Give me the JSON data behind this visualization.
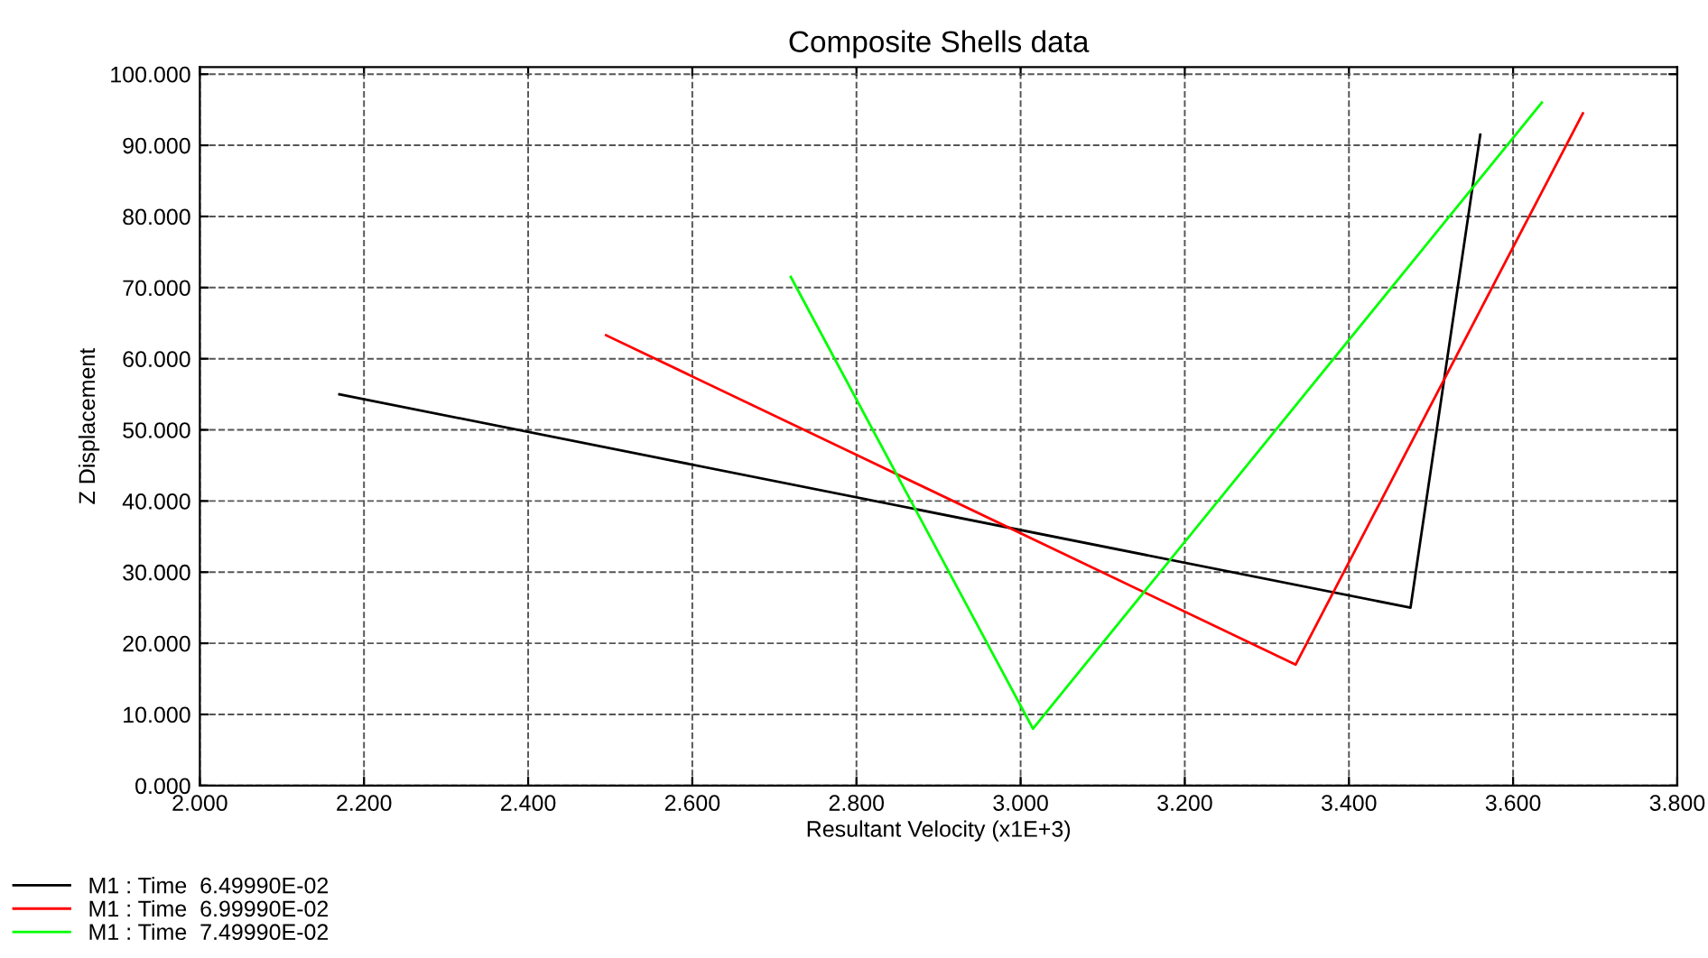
{
  "chart_data": {
    "type": "line",
    "title": "Composite Shells data",
    "xlabel": "Resultant Velocity (x1E+3)",
    "ylabel": "Z Displacement",
    "xlim": [
      2.0,
      3.8
    ],
    "ylim": [
      0,
      101
    ],
    "xticks": [
      {
        "value": 2.0,
        "label": "2.000"
      },
      {
        "value": 2.2,
        "label": "2.200"
      },
      {
        "value": 2.4,
        "label": "2.400"
      },
      {
        "value": 2.6,
        "label": "2.600"
      },
      {
        "value": 2.8,
        "label": "2.800"
      },
      {
        "value": 3.0,
        "label": "3.000"
      },
      {
        "value": 3.2,
        "label": "3.200"
      },
      {
        "value": 3.4,
        "label": "3.400"
      },
      {
        "value": 3.6,
        "label": "3.600"
      },
      {
        "value": 3.8,
        "label": "3.800"
      }
    ],
    "yticks": [
      {
        "value": 0,
        "label": "0.000"
      },
      {
        "value": 10,
        "label": "10.000"
      },
      {
        "value": 20,
        "label": "20.000"
      },
      {
        "value": 30,
        "label": "30.000"
      },
      {
        "value": 40,
        "label": "40.000"
      },
      {
        "value": 50,
        "label": "50.000"
      },
      {
        "value": 60,
        "label": "60.000"
      },
      {
        "value": 70,
        "label": "70.000"
      },
      {
        "value": 80,
        "label": "80.000"
      },
      {
        "value": 90,
        "label": "90.000"
      },
      {
        "value": 100,
        "label": "100.000"
      }
    ],
    "grid": true,
    "legend": "bottom left",
    "marker": "none",
    "line_style": "solid",
    "series": [
      {
        "name": "M1 : Time  6.49990E-02",
        "color": "#000000",
        "x": [
          2.17,
          3.475,
          3.56
        ],
        "values": [
          55,
          25,
          91.5
        ]
      },
      {
        "name": "M1 : Time  6.99990E-02",
        "color": "#ff0000",
        "x": [
          2.495,
          3.335,
          3.685
        ],
        "values": [
          63.3,
          17,
          94.5
        ]
      },
      {
        "name": "M1 : Time  7.49990E-02",
        "color": "#00ff00",
        "x": [
          2.72,
          3.015,
          3.635
        ],
        "values": [
          71.5,
          8,
          96
        ]
      }
    ]
  }
}
